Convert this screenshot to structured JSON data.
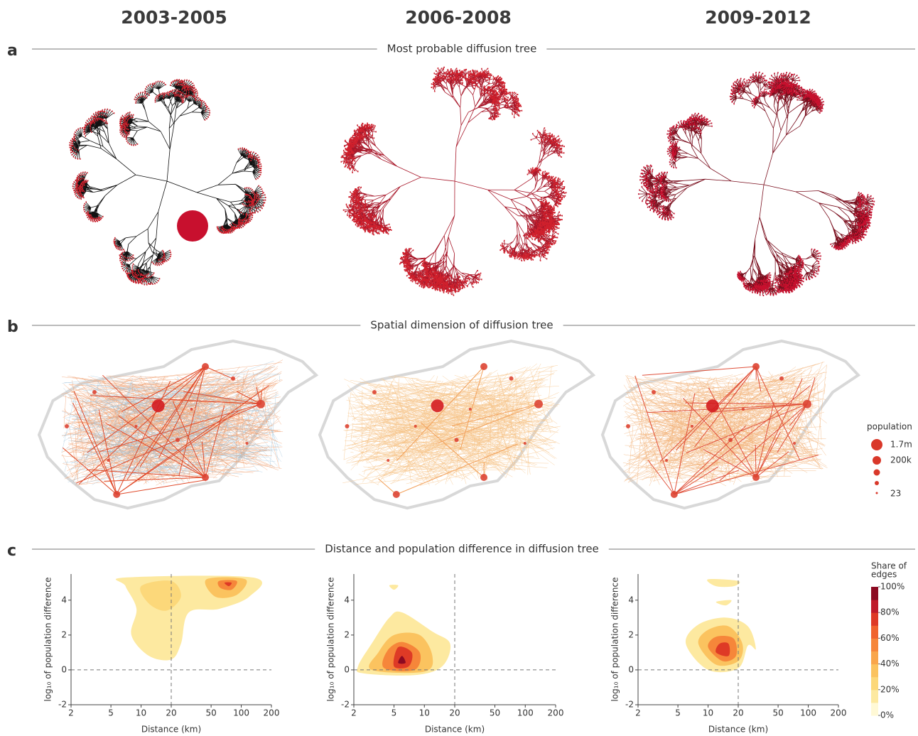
{
  "columns": [
    "2003-2005",
    "2006-2008",
    "2009-2012"
  ],
  "sections": [
    {
      "label": "a",
      "title": "Most probable diffusion tree"
    },
    {
      "label": "b",
      "title": "Spatial dimension of diffusion tree"
    },
    {
      "label": "c",
      "title": "Distance and population difference in diffusion tree"
    }
  ],
  "population_legend": {
    "title": "population",
    "labels": [
      "1.7m",
      "200k",
      "23"
    ]
  },
  "colorbar": {
    "title_lines": [
      "Share of",
      "edges"
    ],
    "ticks": [
      {
        "value": 0,
        "label": "0%"
      },
      {
        "value": 20,
        "label": "20%"
      },
      {
        "value": 40,
        "label": "40%"
      },
      {
        "value": 60,
        "label": "60%"
      },
      {
        "value": 80,
        "label": "80%"
      },
      {
        "value": 100,
        "label": "100%"
      }
    ],
    "colors": [
      "#fff9d6",
      "#fde9a0",
      "#fcd87a",
      "#fbc35f",
      "#f9a64b",
      "#f6863a",
      "#f0632d",
      "#de3a26",
      "#bf1b2a",
      "#8c0a22"
    ]
  },
  "chart_data": [
    {
      "type": "contour",
      "x_label": "Distance (km)",
      "y_label": "log₁₀ of population difference",
      "x_scale": "log",
      "xlim": [
        2,
        200
      ],
      "xticks": [
        2,
        5,
        10,
        20,
        50,
        100,
        200
      ],
      "ylim": [
        -2,
        5.5
      ],
      "yticks": [
        -2,
        0,
        2,
        4
      ],
      "reference_lines": {
        "x": 20,
        "y": 0
      },
      "contours": [
        {
          "level": 15,
          "points": [
            [
              7,
              5.3
            ],
            [
              130,
              5.3
            ],
            [
              120,
              4.2
            ],
            [
              60,
              3.5
            ],
            [
              30,
              3.3
            ],
            [
              25,
              1.5
            ],
            [
              20,
              0.6
            ],
            [
              12,
              0.8
            ],
            [
              8,
              2
            ],
            [
              9,
              3.5
            ],
            [
              7,
              4.8
            ]
          ]
        },
        {
          "level": 25,
          "points": [
            [
              10,
              4.8
            ],
            [
              20,
              5.1
            ],
            [
              25,
              4.2
            ],
            [
              18,
              3.4
            ],
            [
              12,
              3.8
            ]
          ]
        },
        {
          "level": 30,
          "points": [
            [
              45,
              5.2
            ],
            [
              110,
              5.2
            ],
            [
              90,
              4.3
            ],
            [
              55,
              4.2
            ]
          ]
        },
        {
          "level": 50,
          "points": [
            [
              60,
              5.1
            ],
            [
              90,
              5.1
            ],
            [
              80,
              4.6
            ],
            [
              62,
              4.7
            ]
          ]
        },
        {
          "level": 75,
          "points": [
            [
              68,
              5.0
            ],
            [
              80,
              5.0
            ],
            [
              75,
              4.8
            ]
          ]
        }
      ]
    },
    {
      "type": "contour",
      "x_label": "Distance (km)",
      "y_label": "log₁₀ of population difference",
      "x_scale": "log",
      "xlim": [
        2,
        200
      ],
      "xticks": [
        2,
        5,
        10,
        20,
        50,
        100,
        200
      ],
      "ylim": [
        -2,
        5.5
      ],
      "yticks": [
        -2,
        0,
        2,
        4
      ],
      "reference_lines": {
        "x": 20,
        "y": 0
      },
      "contours": [
        {
          "level": 15,
          "points": [
            [
              2.2,
              0.2
            ],
            [
              2.5,
              -0.2
            ],
            [
              8,
              -0.3
            ],
            [
              15,
              0.2
            ],
            [
              18,
              1.5
            ],
            [
              12,
              2.2
            ],
            [
              6,
              3.3
            ],
            [
              4.5,
              3
            ],
            [
              3,
              1.5
            ]
          ]
        },
        {
          "level": 15,
          "points": [
            [
              4.5,
              4.85
            ],
            [
              5.5,
              4.85
            ],
            [
              5,
              4.6
            ]
          ]
        },
        {
          "level": 30,
          "points": [
            [
              3,
              0
            ],
            [
              10,
              -0.1
            ],
            [
              12,
              0.8
            ],
            [
              9,
              2
            ],
            [
              5,
              2
            ],
            [
              3.5,
              1
            ]
          ]
        },
        {
          "level": 50,
          "points": [
            [
              4,
              0.1
            ],
            [
              8,
              0
            ],
            [
              9,
              1
            ],
            [
              6,
              1.6
            ],
            [
              4.3,
              1.1
            ]
          ]
        },
        {
          "level": 70,
          "points": [
            [
              5,
              0.2
            ],
            [
              7,
              0.2
            ],
            [
              7.5,
              1
            ],
            [
              5.5,
              1.3
            ]
          ]
        },
        {
          "level": 90,
          "points": [
            [
              5.5,
              0.4
            ],
            [
              6.5,
              0.4
            ],
            [
              6,
              0.8
            ]
          ]
        }
      ]
    },
    {
      "type": "contour",
      "x_label": "Distance (km)",
      "y_label": "log₁₀ of population difference",
      "x_scale": "log",
      "xlim": [
        2,
        200
      ],
      "xticks": [
        2,
        5,
        10,
        20,
        50,
        100,
        200
      ],
      "ylim": [
        -2,
        5.5
      ],
      "yticks": [
        -2,
        0,
        2,
        4
      ],
      "reference_lines": {
        "x": 20,
        "y": 0
      },
      "contours": [
        {
          "level": 15,
          "points": [
            [
              6,
              1.5
            ],
            [
              10,
              0
            ],
            [
              20,
              0.1
            ],
            [
              25,
              1.4
            ],
            [
              30,
              1.2
            ],
            [
              25,
              2.5
            ],
            [
              15,
              3
            ],
            [
              8,
              2.6
            ]
          ]
        },
        {
          "level": 15,
          "points": [
            [
              10,
              5.2
            ],
            [
              20,
              5.1
            ],
            [
              18,
              4.8
            ],
            [
              12,
              4.8
            ]
          ]
        },
        {
          "level": 15,
          "points": [
            [
              12,
              3.9
            ],
            [
              17,
              4
            ],
            [
              15,
              3.7
            ]
          ]
        },
        {
          "level": 30,
          "points": [
            [
              8,
              1.5
            ],
            [
              12,
              0.3
            ],
            [
              20,
              0.5
            ],
            [
              22,
              1.5
            ],
            [
              16,
              2.5
            ],
            [
              10,
              2.3
            ]
          ]
        },
        {
          "level": 50,
          "points": [
            [
              10,
              1.3
            ],
            [
              14,
              0.5
            ],
            [
              19,
              0.8
            ],
            [
              18,
              1.8
            ],
            [
              12,
              1.9
            ]
          ]
        },
        {
          "level": 70,
          "points": [
            [
              12,
              1
            ],
            [
              16,
              0.8
            ],
            [
              16,
              1.5
            ],
            [
              13,
              1.5
            ]
          ]
        }
      ]
    }
  ]
}
